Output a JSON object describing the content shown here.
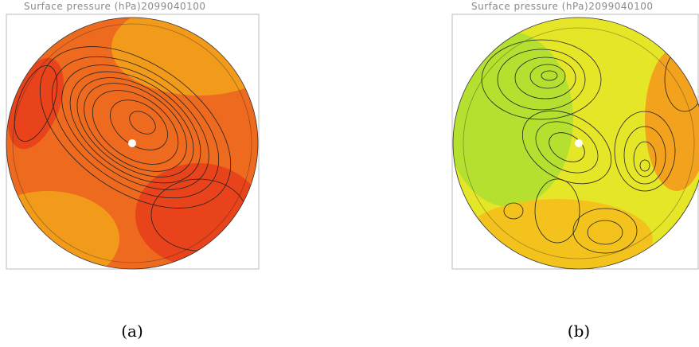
{
  "panels": [
    {
      "title": "Surface pressure  (hPa)2099040100",
      "caption": "(a)"
    },
    {
      "title": "Surface pressure  (hPa)2099040100",
      "caption": "(b)"
    }
  ]
}
